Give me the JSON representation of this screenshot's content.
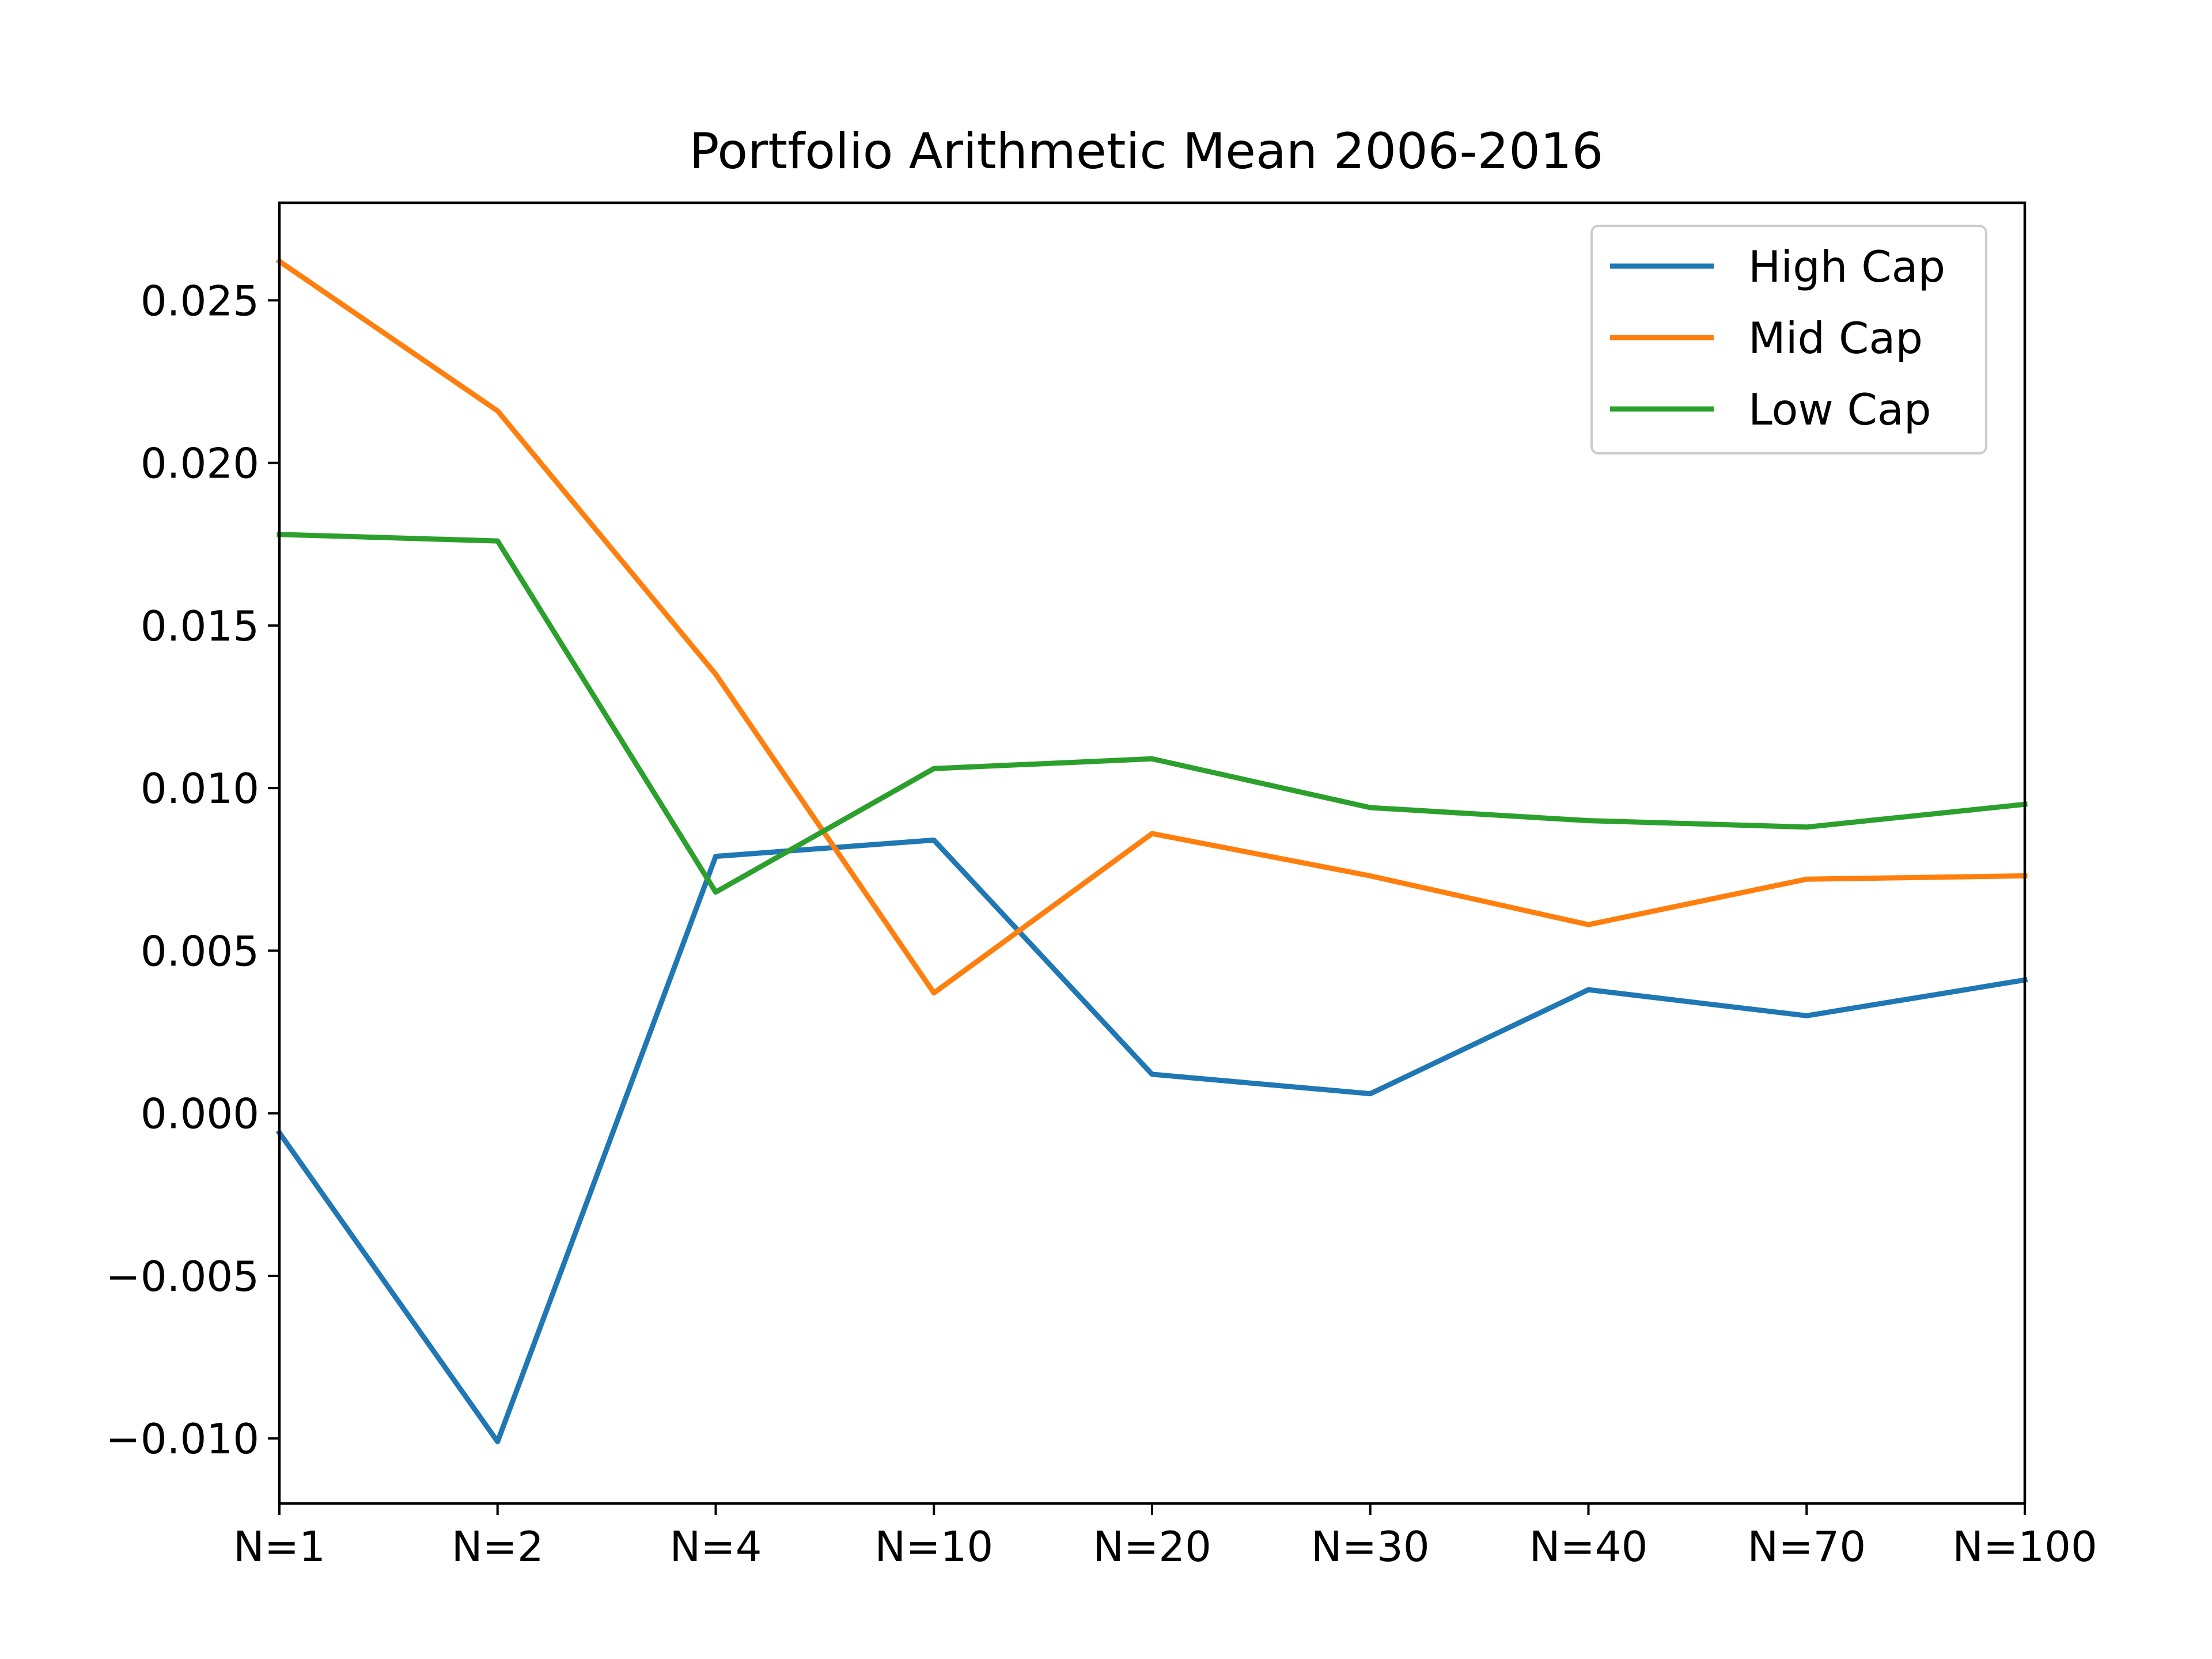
{
  "chart_data": {
    "type": "line",
    "title": "Portfolio Arithmetic Mean 2006-2016",
    "xlabel": "",
    "ylabel": "",
    "categories": [
      "N=1",
      "N=2",
      "N=4",
      "N=10",
      "N=20",
      "N=30",
      "N=40",
      "N=70",
      "N=100"
    ],
    "ylim": [
      -0.012,
      0.028
    ],
    "yticks": [
      -0.01,
      -0.005,
      0.0,
      0.005,
      0.01,
      0.015,
      0.02,
      0.025
    ],
    "ytick_labels": [
      "−0.010",
      "−0.005",
      "0.000",
      "0.005",
      "0.010",
      "0.015",
      "0.020",
      "0.025"
    ],
    "grid": false,
    "legend_position": "top-right",
    "series": [
      {
        "name": "High Cap",
        "color": "#1f77b4",
        "values": [
          -0.0006,
          -0.0101,
          0.0079,
          0.0084,
          0.0012,
          0.0006,
          0.0038,
          0.003,
          0.0041
        ]
      },
      {
        "name": "Mid Cap",
        "color": "#ff7f0e",
        "values": [
          0.0262,
          0.0216,
          0.0135,
          0.0037,
          0.0086,
          0.0073,
          0.0058,
          0.0072,
          0.0073
        ]
      },
      {
        "name": "Low Cap",
        "color": "#2ca02c",
        "values": [
          0.0178,
          0.0176,
          0.0068,
          0.0106,
          0.0109,
          0.0094,
          0.009,
          0.0088,
          0.0095
        ]
      }
    ]
  }
}
